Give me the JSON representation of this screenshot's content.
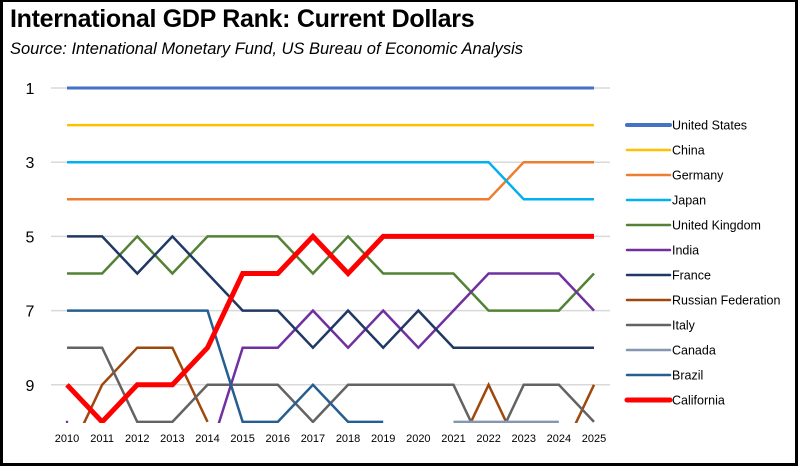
{
  "chart_data": {
    "type": "line",
    "title": "International GDP Rank:  Current Dollars",
    "subtitle": "Source:  Intenational Monetary Fund, US Bureau of Economic Analysis",
    "xlabel": "",
    "ylabel": "",
    "x": [
      "2010",
      "2011",
      "2012",
      "2013",
      "2014",
      "2015",
      "2016",
      "2017",
      "2018",
      "2019",
      "2020",
      "2021",
      "2022",
      "2023",
      "2024",
      "2025"
    ],
    "ylim": [
      1,
      10
    ],
    "y_inverted": true,
    "y_ticks": [
      1,
      3,
      5,
      7,
      9
    ],
    "grid": true,
    "legend_position": "right",
    "series": [
      {
        "name": "United States",
        "color": "#4472C4",
        "values": [
          1,
          1,
          1,
          1,
          1,
          1,
          1,
          1,
          1,
          1,
          1,
          1,
          1,
          1,
          1,
          1
        ]
      },
      {
        "name": "China",
        "color": "#FFC000",
        "values": [
          2,
          2,
          2,
          2,
          2,
          2,
          2,
          2,
          2,
          2,
          2,
          2,
          2,
          2,
          2,
          2
        ]
      },
      {
        "name": "Germany",
        "color": "#ED7D31",
        "values": [
          4,
          4,
          4,
          4,
          4,
          4,
          4,
          4,
          4,
          4,
          4,
          4,
          4,
          3,
          3,
          3
        ]
      },
      {
        "name": "Japan",
        "color": "#00B0F0",
        "values": [
          3,
          3,
          3,
          3,
          3,
          3,
          3,
          3,
          3,
          3,
          3,
          3,
          3,
          4,
          4,
          4
        ]
      },
      {
        "name": "United Kingdom",
        "color": "#548235",
        "values": [
          6,
          6,
          5,
          6,
          5,
          5,
          5,
          6,
          5,
          6,
          6,
          6,
          7,
          7,
          7,
          6
        ]
      },
      {
        "name": "India",
        "color": "#7030A0",
        "values": [
          10,
          null,
          null,
          null,
          11,
          8,
          8,
          7,
          8,
          7,
          8,
          7,
          6,
          6,
          6,
          7
        ]
      },
      {
        "name": "France",
        "color": "#203864",
        "values": [
          5,
          5,
          6,
          5,
          6,
          7,
          7,
          8,
          7,
          8,
          7,
          8,
          8,
          8,
          8,
          8
        ]
      },
      {
        "name": "Russian Federation",
        "color": "#9E480E",
        "values": [
          11,
          9,
          8,
          8,
          10,
          null,
          null,
          null,
          null,
          null,
          null,
          11,
          9,
          11,
          11,
          9
        ]
      },
      {
        "name": "Italy",
        "color": "#636363",
        "values": [
          8,
          8,
          10,
          10,
          9,
          9,
          9,
          10,
          9,
          9,
          9,
          9,
          11,
          9,
          9,
          10
        ]
      },
      {
        "name": "Canada",
        "color": "#8497B0",
        "values": [
          null,
          null,
          null,
          null,
          null,
          null,
          null,
          null,
          null,
          null,
          null,
          10,
          10,
          10,
          10,
          null
        ]
      },
      {
        "name": "Brazil",
        "color": "#255E91",
        "values": [
          7,
          7,
          7,
          7,
          7,
          10,
          10,
          9,
          10,
          10,
          null,
          null,
          null,
          null,
          null,
          null
        ]
      },
      {
        "name": "California",
        "color": "#FF0000",
        "values": [
          9,
          10,
          9,
          9,
          8,
          6,
          6,
          5,
          6,
          5,
          5,
          5,
          5,
          5,
          5,
          5
        ]
      }
    ]
  }
}
